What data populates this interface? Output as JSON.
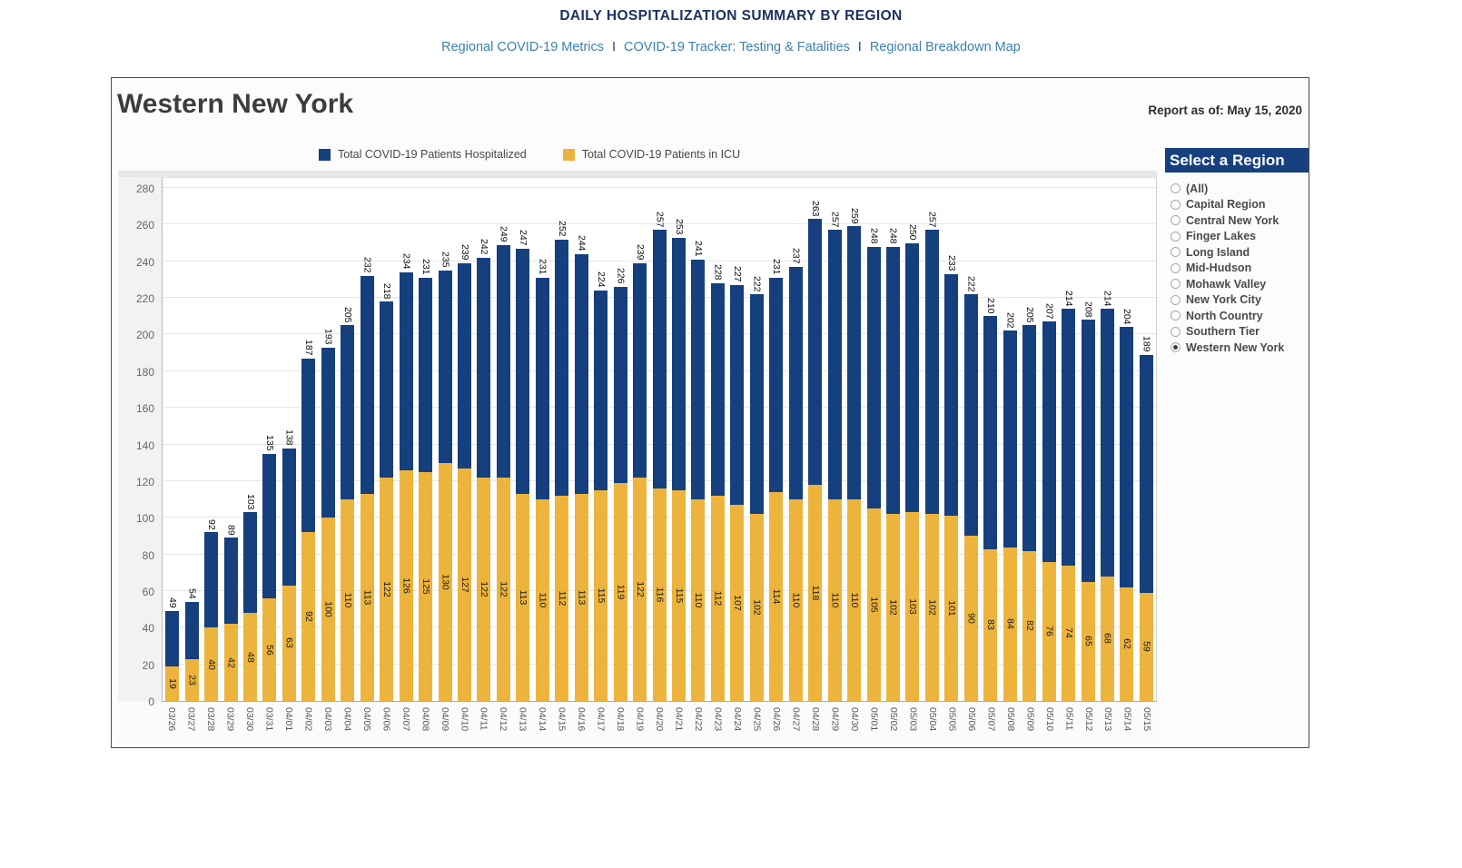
{
  "header": {
    "title": "DAILY HOSPITALIZATION SUMMARY BY REGION",
    "links": [
      "Regional COVID-19 Metrics",
      "COVID-19 Tracker: Testing & Fatalities",
      "Regional Breakdown Map"
    ],
    "separator": "I"
  },
  "region": {
    "title": "Western New York",
    "report_as_of": "Report as of: May 15, 2020"
  },
  "legend": {
    "hospitalized": "Total COVID-19 Patients Hospitalized",
    "icu": "Total COVID-19 Patients in ICU"
  },
  "filter": {
    "title": "Select a Region",
    "options": [
      "(All)",
      "Capital Region",
      "Central New York",
      "Finger Lakes",
      "Long Island",
      "Mid-Hudson",
      "Mohawk Valley",
      "New York City",
      "North Country",
      "Southern Tier",
      "Western New York"
    ],
    "selected": "Western New York"
  },
  "colors": {
    "hospitalized_navy": "#15407d",
    "icu_gold": "#edb43d",
    "header_navy": "#17407f",
    "link_blue": "#3d7fae",
    "title_navy": "#1d3160"
  },
  "chart_data": {
    "type": "bar",
    "stacked": true,
    "title": "Western New York",
    "xlabel": "",
    "ylabel": "",
    "ylim": [
      0,
      280
    ],
    "ytick_step": 20,
    "grid": true,
    "legend_position": "top",
    "categories": [
      "03/26",
      "03/27",
      "03/28",
      "03/29",
      "03/30",
      "03/31",
      "04/01",
      "04/02",
      "04/03",
      "04/04",
      "04/05",
      "04/06",
      "04/07",
      "04/08",
      "04/09",
      "04/10",
      "04/11",
      "04/12",
      "04/13",
      "04/14",
      "04/15",
      "04/16",
      "04/17",
      "04/18",
      "04/19",
      "04/20",
      "04/21",
      "04/22",
      "04/23",
      "04/24",
      "04/25",
      "04/26",
      "04/27",
      "04/28",
      "04/29",
      "04/30",
      "05/01",
      "05/02",
      "05/03",
      "05/04",
      "05/05",
      "05/06",
      "05/07",
      "05/08",
      "05/09",
      "05/10",
      "05/11",
      "05/12",
      "05/13",
      "05/14",
      "05/15"
    ],
    "series": [
      {
        "name": "Total COVID-19 Patients Hospitalized",
        "values": [
          49,
          54,
          92,
          89,
          103,
          135,
          138,
          187,
          193,
          205,
          232,
          218,
          234,
          231,
          235,
          239,
          242,
          249,
          247,
          231,
          252,
          244,
          224,
          226,
          239,
          257,
          253,
          241,
          228,
          227,
          222,
          231,
          237,
          263,
          257,
          259,
          248,
          248,
          250,
          257,
          233,
          222,
          210,
          202,
          205,
          207,
          214,
          208,
          214,
          204,
          189
        ]
      },
      {
        "name": "Total COVID-19 Patients in ICU",
        "values": [
          19,
          23,
          40,
          42,
          48,
          56,
          63,
          92,
          100,
          110,
          113,
          122,
          126,
          125,
          130,
          127,
          122,
          122,
          113,
          110,
          112,
          113,
          115,
          119,
          122,
          116,
          115,
          110,
          112,
          107,
          102,
          114,
          110,
          118,
          110,
          110,
          105,
          102,
          103,
          102,
          101,
          90,
          83,
          84,
          82,
          76,
          74,
          65,
          68,
          62,
          59
        ]
      }
    ]
  }
}
